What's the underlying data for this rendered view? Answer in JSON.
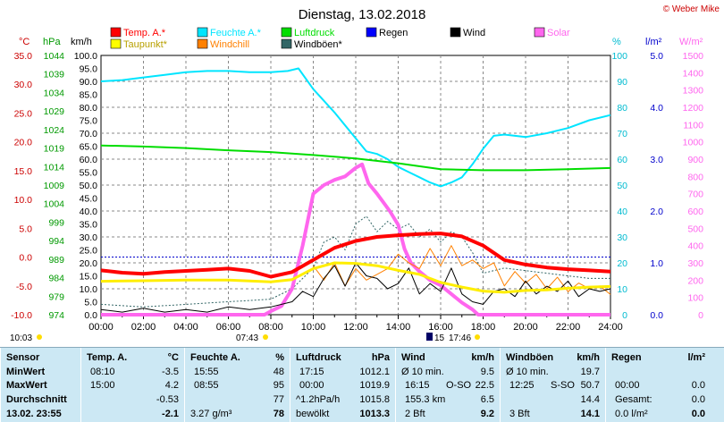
{
  "chart_data": {
    "type": "line",
    "title": "Dienstag, 13.02.2018",
    "copyright": "© Weber Mike",
    "legend": [
      {
        "name": "Temp. A.*",
        "color": "#ff0000"
      },
      {
        "name": "Feuchte A.*",
        "color": "#00e5ff"
      },
      {
        "name": "Luftdruck",
        "color": "#00dd00"
      },
      {
        "name": "Regen",
        "color": "#0000ff"
      },
      {
        "name": "Wind",
        "color": "#000000"
      },
      {
        "name": "Solar",
        "color": "#ff66ee"
      },
      {
        "name": "Taupunkt*",
        "color": "#ffff00"
      },
      {
        "name": "Windchill",
        "color": "#ff8000"
      },
      {
        "name": "Windböen*",
        "color": "#336666"
      }
    ],
    "axes": {
      "temp": {
        "label": "°C",
        "min": -10,
        "max": 35,
        "ticks": [
          "35.0",
          "30.0",
          "25.0",
          "20.0",
          "15.0",
          "10.0",
          "5.0",
          "0.0",
          "-5.0",
          "-10.0"
        ]
      },
      "pressure": {
        "label": "hPa",
        "min": 974,
        "max": 1044,
        "ticks": [
          "1044",
          "1039",
          "1034",
          "1029",
          "1024",
          "1019",
          "1014",
          "1009",
          "1004",
          "999",
          "994",
          "989",
          "984",
          "979",
          "974"
        ]
      },
      "wind": {
        "label": "km/h",
        "min": 0,
        "max": 100,
        "ticks": [
          "100.0",
          "95.0",
          "90.0",
          "85.0",
          "80.0",
          "75.0",
          "70.0",
          "65.0",
          "60.0",
          "55.0",
          "50.0",
          "45.0",
          "40.0",
          "35.0",
          "30.0",
          "25.0",
          "20.0",
          "15.0",
          "10.0",
          "5.0",
          "0.0"
        ]
      },
      "humidity": {
        "label": "%",
        "min": 0,
        "max": 100,
        "ticks": [
          "100",
          "90",
          "80",
          "70",
          "60",
          "50",
          "40",
          "30",
          "20",
          "10",
          "0"
        ]
      },
      "rain": {
        "label": "l/m²",
        "min": 0,
        "max": 5,
        "ticks": [
          "5.0",
          "4.0",
          "3.0",
          "2.0",
          "1.0",
          "0.0"
        ]
      },
      "solar": {
        "label": "W/m²",
        "min": 0,
        "max": 1500,
        "ticks": [
          "1500",
          "1400",
          "1300",
          "1200",
          "1100",
          "1000",
          "900",
          "800",
          "700",
          "600",
          "500",
          "400",
          "300",
          "200",
          "100",
          "0"
        ]
      },
      "x": {
        "min": 0,
        "max": 24,
        "ticks": [
          "00:00",
          "02:00",
          "04:00",
          "06:00",
          "08:00",
          "10:00",
          "12:00",
          "14:00",
          "16:00",
          "18:00",
          "20:00",
          "22:00",
          "24:00"
        ]
      }
    },
    "markers": {
      "left": "10:03",
      "sunrise": "07:43",
      "sunset": "17:46",
      "moon": "15"
    },
    "series": [
      {
        "name": "Feuchte A.*",
        "axis": "humidity",
        "x": [
          0,
          1,
          2,
          3,
          4,
          5,
          6,
          7,
          8,
          8.8,
          9.3,
          10,
          11,
          12,
          12.5,
          13,
          13.5,
          14,
          14.5,
          15,
          15.5,
          16,
          16.5,
          17,
          17.5,
          18,
          18.5,
          19,
          20,
          21,
          22,
          23,
          24
        ],
        "y": [
          90,
          90.5,
          91.5,
          92.5,
          93.5,
          94,
          94,
          93.5,
          93.5,
          94,
          95,
          87,
          78,
          68,
          63,
          62,
          60,
          57,
          55,
          53,
          51,
          49.5,
          51,
          53,
          58,
          64,
          69,
          69.5,
          68.5,
          70,
          72,
          75,
          77
        ]
      },
      {
        "name": "Luftdruck",
        "axis": "pressure",
        "x": [
          0,
          2,
          4,
          6,
          8,
          10,
          12,
          14,
          16,
          18,
          20,
          22,
          24
        ],
        "y": [
          1019.7,
          1019.4,
          1019,
          1018.4,
          1017.9,
          1017.1,
          1016.2,
          1014.9,
          1013.3,
          1013,
          1013,
          1013.3,
          1013.6
        ]
      },
      {
        "name": "Temp. A.*",
        "axis": "temp",
        "x": [
          0,
          1,
          2,
          3,
          4,
          5,
          6,
          7,
          8,
          9,
          10,
          11,
          12,
          13,
          14,
          15,
          16,
          17,
          18,
          19,
          20,
          21,
          22,
          23,
          24
        ],
        "y": [
          -2.3,
          -2.7,
          -2.9,
          -2.6,
          -2.4,
          -2.2,
          -2.0,
          -2.4,
          -3.4,
          -2.6,
          -0.5,
          1.6,
          2.8,
          3.5,
          3.8,
          4.0,
          4.1,
          3.6,
          2.0,
          -0.5,
          -1.3,
          -1.8,
          -2.1,
          -2.3,
          -2.5
        ]
      },
      {
        "name": "Taupunkt*",
        "axis": "temp",
        "x": [
          0,
          2,
          4,
          6,
          8,
          9,
          10,
          11,
          12,
          13,
          14,
          15,
          16,
          17,
          18,
          19,
          20,
          21,
          22,
          23,
          24
        ],
        "y": [
          -4.2,
          -4.1,
          -4.0,
          -4.0,
          -4.3,
          -3.9,
          -2.0,
          -1.0,
          -1.1,
          -1.5,
          -2.3,
          -3.0,
          -4.4,
          -5.2,
          -5.9,
          -6.1,
          -5.8,
          -5.7,
          -5.4,
          -5.2,
          -5.1
        ]
      },
      {
        "name": "Wind",
        "axis": "wind",
        "x": [
          0,
          1,
          2,
          3,
          4,
          5,
          6,
          7,
          8,
          9,
          9.5,
          10,
          10.5,
          11,
          11.5,
          12,
          12.5,
          13,
          13.5,
          14,
          14.5,
          15,
          15.5,
          16,
          16.5,
          17,
          17.5,
          18,
          18.5,
          19,
          19.5,
          20,
          20.5,
          21,
          21.5,
          22,
          22.5,
          23,
          23.5,
          24
        ],
        "y": [
          2,
          1,
          2.5,
          1,
          2,
          1,
          3,
          2,
          3,
          5,
          9,
          7,
          14,
          19,
          11,
          20,
          15,
          14,
          10,
          12,
          18,
          8,
          12,
          9,
          18,
          8,
          5,
          4,
          9,
          10,
          7,
          13,
          8,
          11,
          9,
          13,
          7,
          10,
          9,
          10
        ]
      },
      {
        "name": "Windchill",
        "axis": "temp",
        "x": [
          10,
          10.5,
          11,
          11.5,
          12,
          12.5,
          13,
          13.5,
          14,
          14.5,
          15,
          15.5,
          16,
          16.5,
          17,
          17.5,
          18,
          18.5,
          19,
          19.5,
          20,
          20.5,
          21,
          21.5,
          22,
          22.5,
          23,
          23.5,
          24
        ],
        "y": [
          -1.5,
          -4.0,
          -1.0,
          -5.0,
          -2.0,
          -4.0,
          -3.0,
          -2.0,
          0.5,
          -1.0,
          -2.0,
          1.5,
          -1.5,
          2.0,
          -1.5,
          -0.5,
          -2.0,
          -1.0,
          -5.0,
          -2.5,
          -4.5,
          -3.0,
          -5.5,
          -3.5,
          -6.0,
          -4.5,
          -5.5,
          -5.0,
          -6.5
        ]
      },
      {
        "name": "Windböen*",
        "axis": "wind",
        "x": [
          0,
          2,
          4,
          6,
          8,
          9,
          10,
          10.5,
          11,
          11.5,
          12,
          12.5,
          13,
          13.5,
          14,
          14.5,
          15,
          15.5,
          16,
          16.5,
          17,
          17.5,
          18,
          19,
          20,
          21,
          22,
          23,
          24
        ],
        "y": [
          4,
          3,
          4,
          5,
          6,
          10,
          18,
          28,
          30,
          25,
          35,
          38,
          32,
          36,
          33,
          35,
          30,
          33,
          28,
          32,
          30,
          24,
          16,
          18,
          17,
          16,
          15,
          14,
          14
        ]
      },
      {
        "name": "Solar",
        "axis": "solar",
        "x": [
          0,
          7.7,
          8,
          8.5,
          9,
          9.5,
          10,
          10.5,
          11,
          11.5,
          12,
          12.3,
          12.6,
          13,
          13.3,
          13.6,
          14,
          14.3,
          14.6,
          15,
          15.5,
          16,
          16.5,
          17,
          17.5,
          17.77,
          24
        ],
        "y": [
          0,
          0,
          20,
          50,
          150,
          400,
          700,
          750,
          780,
          800,
          850,
          870,
          760,
          700,
          650,
          600,
          520,
          380,
          300,
          250,
          200,
          170,
          120,
          70,
          30,
          0,
          0
        ]
      }
    ]
  },
  "stats": {
    "sensor": {
      "header": "Sensor",
      "min_label": "MinWert",
      "max_label": "MaxWert",
      "avg_label": "Durchschnitt",
      "current_label": "13.02. 23:55"
    },
    "temp": {
      "header": "Temp. A.",
      "unit": "°C",
      "min_time": "08:10",
      "min_value": "-3.5",
      "max_time": "15:00",
      "max_value": "4.2",
      "avg_value": "-0.53",
      "current_value": "-2.1"
    },
    "humidity": {
      "header": "Feuchte A.",
      "unit": "%",
      "min_time": "15:55",
      "min_value": "48",
      "max_time": "08:55",
      "max_value": "95",
      "avg_value": "77",
      "current_extra": "3.27 g/m³",
      "current_value": "78"
    },
    "pressure": {
      "header": "Luftdruck",
      "unit": "hPa",
      "min_time": "17:15",
      "min_value": "1012.1",
      "max_time": "00:00",
      "max_value": "1019.9",
      "avg_label": "^1.2hPa/h",
      "avg_value": "1015.8",
      "current_label": "bewölkt",
      "current_value": "1013.3"
    },
    "wind": {
      "header": "Wind",
      "unit": "km/h",
      "r1_label": "Ø 10 min.",
      "r1_value": "9.5",
      "r2_time": "16:15",
      "r2_dir": "O-SO",
      "r2_value": "22.5",
      "r3_label": "155.3 km",
      "r3_value": "6.5",
      "r4_label": "2 Bft",
      "r4_value": "9.2"
    },
    "gusts": {
      "header": "Windböen",
      "unit": "km/h",
      "r1_label": "Ø 10 min.",
      "r1_value": "19.7",
      "r2_time": "12:25",
      "r2_dir": "S-SO",
      "r2_value": "50.7",
      "r3_value": "14.4",
      "r4_label": "3 Bft",
      "r4_value": "14.1"
    },
    "rain": {
      "header": "Regen",
      "unit": "l/m²",
      "r2_time": "00:00",
      "r2_value": "0.0",
      "r3_label": "Gesamt:",
      "r3_value": "0.0",
      "r4_label": "0.0 l/m²",
      "r4_value": "0.0"
    }
  }
}
